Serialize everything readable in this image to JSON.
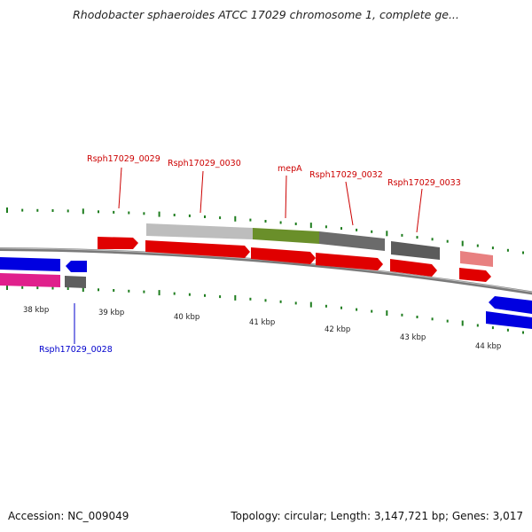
{
  "title": "Rhodobacter sphaeroides ATCC 17029 chromosome 1, complete ge...",
  "footer": {
    "accession": "Accession: NC_009049",
    "summary": "Topology: circular; Length: 3,147,721 bp; Genes: 3,017"
  },
  "scale_labels": [
    "38 kbp",
    "39 kbp",
    "40 kbp",
    "41 kbp",
    "42 kbp",
    "43 kbp",
    "44 kbp"
  ],
  "gene_labels": {
    "above": [
      "Rsph17029_0029",
      "Rsph17029_0030",
      "mepA",
      "Rsph17029_0032",
      "Rsph17029_0033"
    ],
    "below": [
      "Rsph17029_0028"
    ]
  },
  "colors": {
    "cds": "#e00000",
    "gene_bar": "#555555",
    "misc_light": "#bbbbbb",
    "misc_green": "#6a8f2a",
    "reverse_blue": "#0000e0",
    "reverse_pink": "#e0208c",
    "pseudo_pink": "#e88080",
    "label_red": "#cc0000",
    "label_blue": "#0000cc",
    "tick_green": "#1e7d1e"
  }
}
